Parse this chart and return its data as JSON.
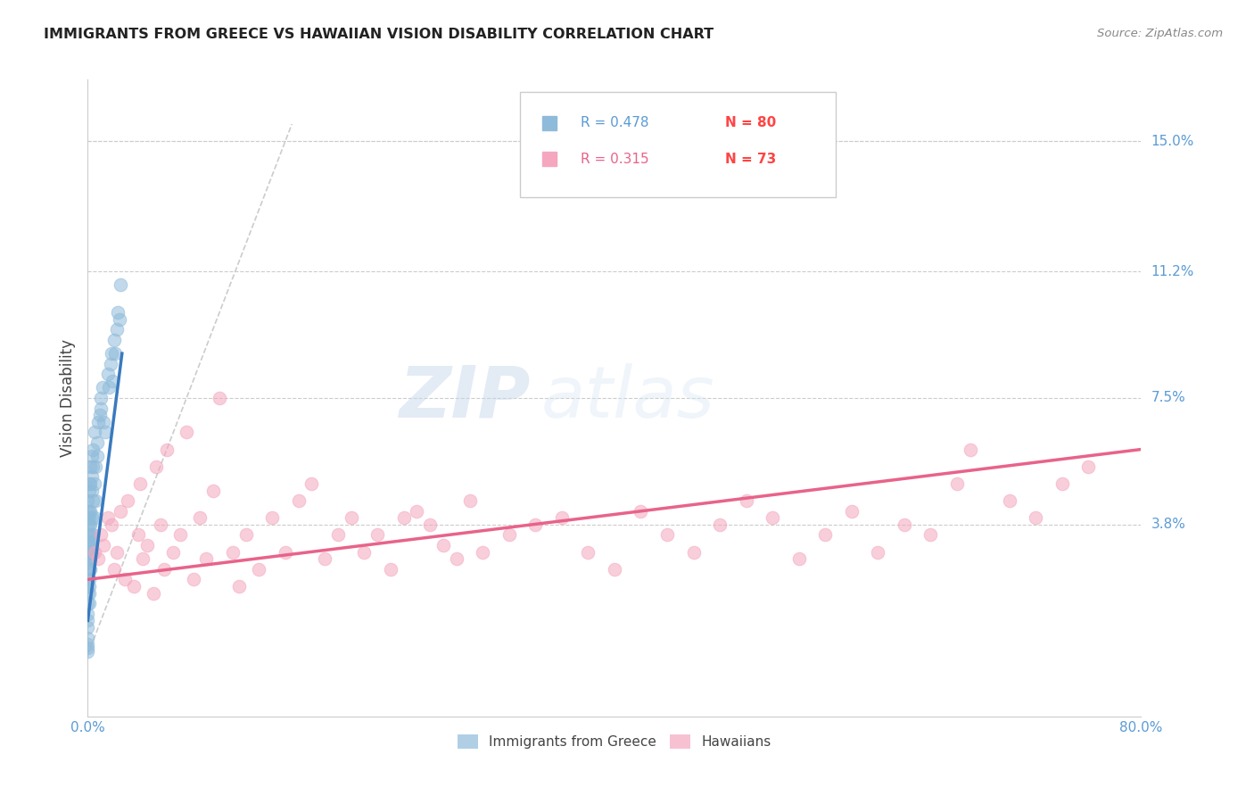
{
  "title": "IMMIGRANTS FROM GREECE VS HAWAIIAN VISION DISABILITY CORRELATION CHART",
  "source": "Source: ZipAtlas.com",
  "ylabel": "Vision Disability",
  "y_tick_labels": [
    "15.0%",
    "11.2%",
    "7.5%",
    "3.8%"
  ],
  "y_tick_values": [
    0.15,
    0.112,
    0.075,
    0.038
  ],
  "xmin": 0.0,
  "xmax": 0.8,
  "ymin": -0.018,
  "ymax": 0.168,
  "legend_r1": "R = 0.478",
  "legend_n1": "N = 80",
  "legend_r2": "R = 0.315",
  "legend_n2": "N = 73",
  "color_blue": "#8fbbda",
  "color_blue_line": "#3a7abf",
  "color_pink": "#f4a7be",
  "color_pink_line": "#e8638a",
  "color_axis_labels": "#5b9bd5",
  "color_n_values": "#ff4444",
  "greece_x": [
    0.0,
    0.0,
    0.0,
    0.0,
    0.0,
    0.0,
    0.0,
    0.0,
    0.0,
    0.0,
    0.0,
    0.0,
    0.0,
    0.0,
    0.0,
    0.0,
    0.0,
    0.0,
    0.0,
    0.0,
    0.0,
    0.0,
    0.001,
    0.001,
    0.001,
    0.001,
    0.001,
    0.001,
    0.001,
    0.001,
    0.001,
    0.001,
    0.001,
    0.001,
    0.001,
    0.001,
    0.001,
    0.002,
    0.002,
    0.002,
    0.002,
    0.002,
    0.002,
    0.002,
    0.002,
    0.002,
    0.003,
    0.003,
    0.003,
    0.003,
    0.003,
    0.004,
    0.004,
    0.004,
    0.004,
    0.005,
    0.005,
    0.005,
    0.006,
    0.006,
    0.007,
    0.007,
    0.008,
    0.009,
    0.01,
    0.01,
    0.011,
    0.012,
    0.013,
    0.015,
    0.016,
    0.017,
    0.018,
    0.019,
    0.02,
    0.021,
    0.022,
    0.023,
    0.024,
    0.025
  ],
  "greece_y": [
    0.03,
    0.028,
    0.032,
    0.035,
    0.025,
    0.02,
    0.038,
    0.04,
    0.022,
    0.018,
    0.015,
    0.01,
    0.005,
    0.008,
    0.012,
    0.042,
    0.033,
    0.027,
    0.003,
    0.002,
    0.001,
    0.045,
    0.028,
    0.03,
    0.032,
    0.025,
    0.02,
    0.035,
    0.038,
    0.042,
    0.015,
    0.048,
    0.05,
    0.022,
    0.018,
    0.033,
    0.04,
    0.028,
    0.035,
    0.042,
    0.03,
    0.05,
    0.025,
    0.055,
    0.032,
    0.038,
    0.048,
    0.052,
    0.04,
    0.03,
    0.058,
    0.045,
    0.055,
    0.035,
    0.06,
    0.05,
    0.04,
    0.065,
    0.055,
    0.045,
    0.058,
    0.062,
    0.068,
    0.07,
    0.072,
    0.075,
    0.078,
    0.068,
    0.065,
    0.082,
    0.078,
    0.085,
    0.088,
    0.08,
    0.092,
    0.088,
    0.095,
    0.1,
    0.098,
    0.108
  ],
  "hawaii_x": [
    0.005,
    0.008,
    0.01,
    0.012,
    0.015,
    0.018,
    0.02,
    0.022,
    0.025,
    0.028,
    0.03,
    0.035,
    0.038,
    0.04,
    0.042,
    0.045,
    0.05,
    0.052,
    0.055,
    0.058,
    0.06,
    0.065,
    0.07,
    0.075,
    0.08,
    0.085,
    0.09,
    0.095,
    0.1,
    0.11,
    0.115,
    0.12,
    0.13,
    0.14,
    0.15,
    0.16,
    0.17,
    0.18,
    0.19,
    0.2,
    0.21,
    0.22,
    0.23,
    0.24,
    0.25,
    0.26,
    0.27,
    0.28,
    0.29,
    0.3,
    0.32,
    0.34,
    0.36,
    0.38,
    0.4,
    0.42,
    0.44,
    0.46,
    0.48,
    0.5,
    0.52,
    0.54,
    0.56,
    0.58,
    0.6,
    0.62,
    0.64,
    0.66,
    0.67,
    0.7,
    0.72,
    0.74,
    0.76
  ],
  "hawaii_y": [
    0.03,
    0.028,
    0.035,
    0.032,
    0.04,
    0.038,
    0.025,
    0.03,
    0.042,
    0.022,
    0.045,
    0.02,
    0.035,
    0.05,
    0.028,
    0.032,
    0.018,
    0.055,
    0.038,
    0.025,
    0.06,
    0.03,
    0.035,
    0.065,
    0.022,
    0.04,
    0.028,
    0.048,
    0.075,
    0.03,
    0.02,
    0.035,
    0.025,
    0.04,
    0.03,
    0.045,
    0.05,
    0.028,
    0.035,
    0.04,
    0.03,
    0.035,
    0.025,
    0.04,
    0.042,
    0.038,
    0.032,
    0.028,
    0.045,
    0.03,
    0.035,
    0.038,
    0.04,
    0.03,
    0.025,
    0.042,
    0.035,
    0.03,
    0.038,
    0.045,
    0.04,
    0.028,
    0.035,
    0.042,
    0.03,
    0.038,
    0.035,
    0.05,
    0.06,
    0.045,
    0.04,
    0.05,
    0.055
  ],
  "diag_line_x": [
    0.0,
    0.155
  ],
  "diag_line_y": [
    0.0,
    0.155
  ],
  "greece_line_x": [
    0.0,
    0.026
  ],
  "greece_line_y_start": 0.01,
  "greece_line_y_end": 0.088,
  "hawaii_line_x": [
    0.0,
    0.8
  ],
  "hawaii_line_y_start": 0.022,
  "hawaii_line_y_end": 0.06
}
